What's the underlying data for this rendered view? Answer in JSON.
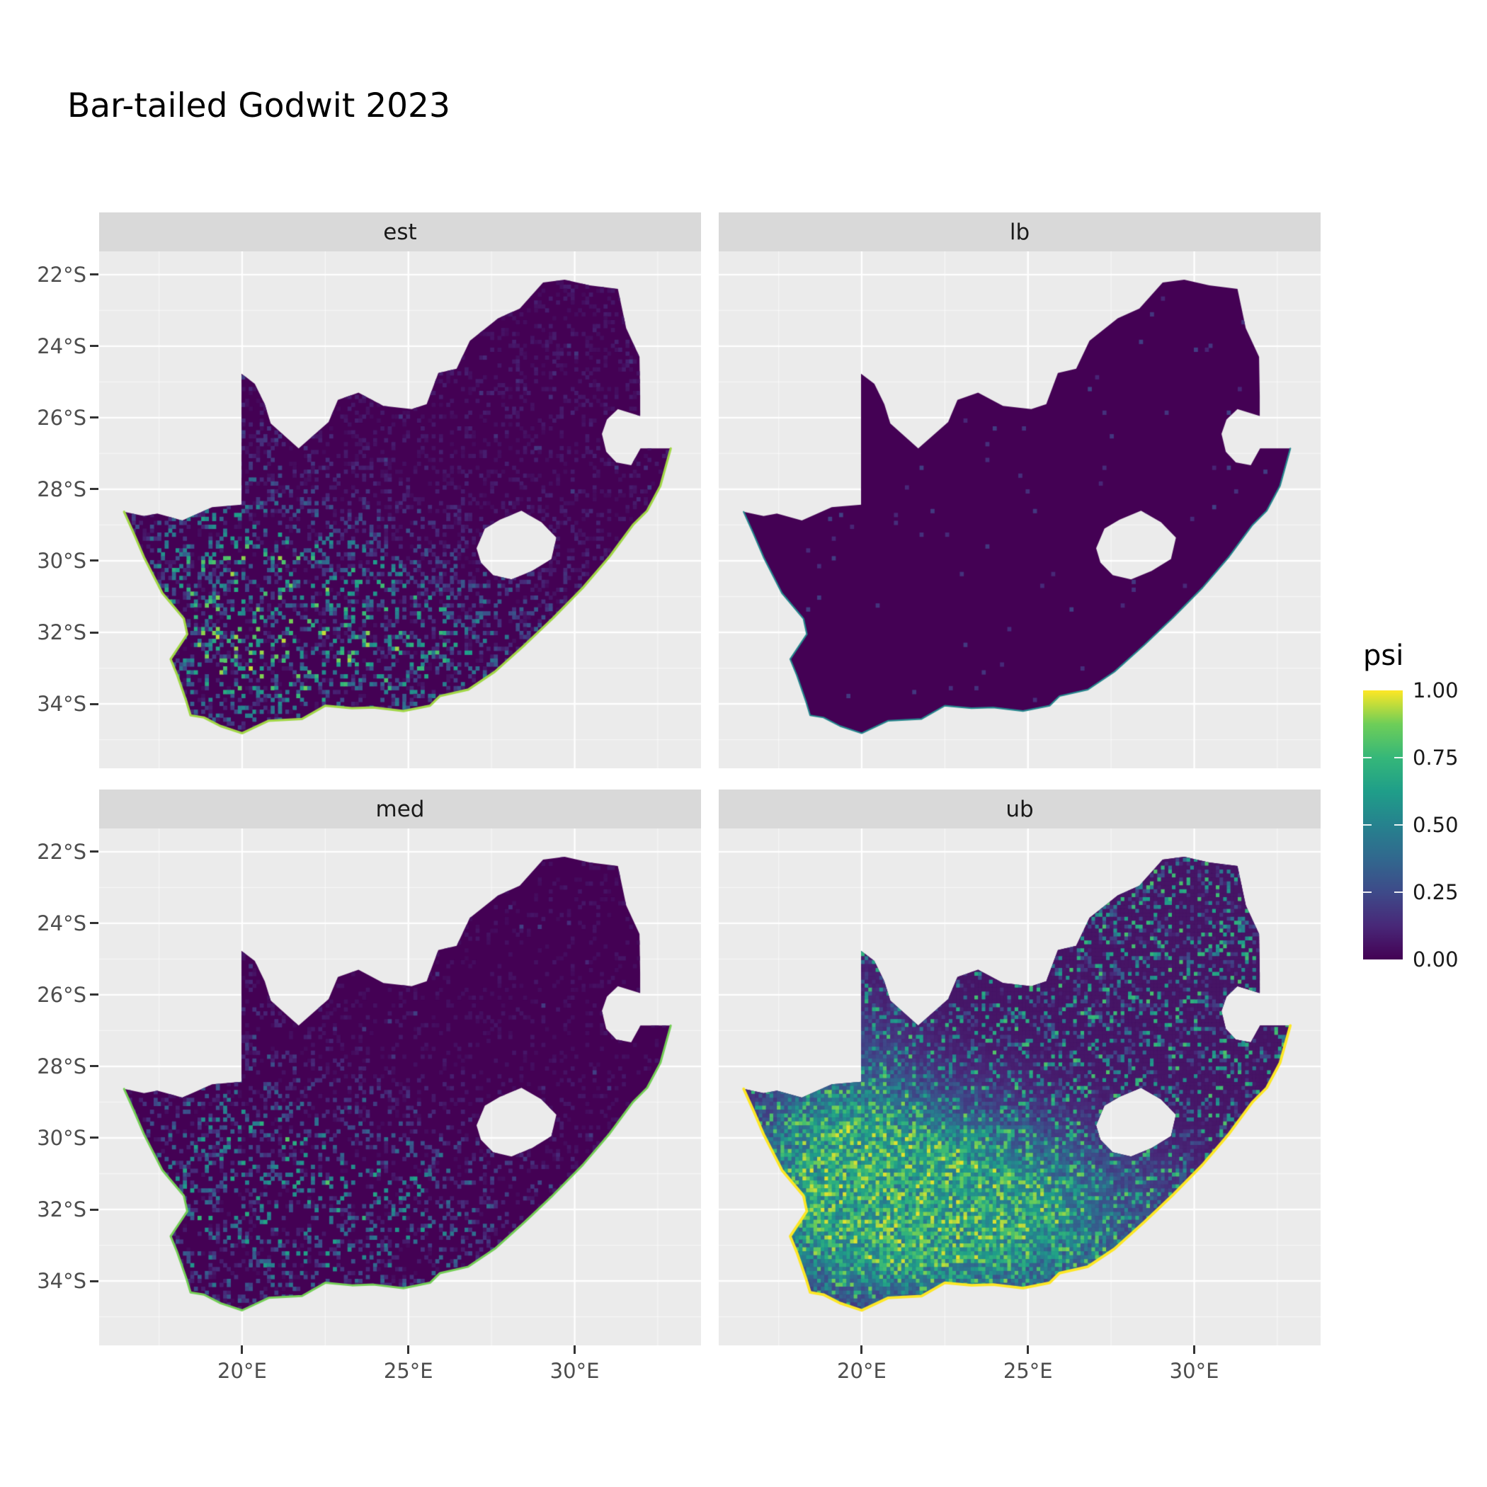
{
  "title": "Bar-tailed Godwit 2023",
  "legend": {
    "title": "psi",
    "tick_labels": [
      "1.00",
      "0.75",
      "0.50",
      "0.25",
      "0.00"
    ],
    "tick_values": [
      1.0,
      0.75,
      0.5,
      0.25,
      0.0
    ]
  },
  "axes": {
    "x_ticks": [
      {
        "label": "20°E",
        "value": 20
      },
      {
        "label": "25°E",
        "value": 25
      },
      {
        "label": "30°E",
        "value": 30
      }
    ],
    "y_ticks": [
      {
        "label": "22°S",
        "value": -22
      },
      {
        "label": "24°S",
        "value": -24
      },
      {
        "label": "26°S",
        "value": -26
      },
      {
        "label": "28°S",
        "value": -28
      },
      {
        "label": "30°S",
        "value": -30
      },
      {
        "label": "32°S",
        "value": -32
      },
      {
        "label": "34°S",
        "value": -34
      }
    ]
  },
  "chart_data": {
    "type": "heatmap",
    "title": "Bar-tailed Godwit 2023",
    "variable": "psi",
    "region": "South Africa (Lesotho and Eswatini excluded as holes)",
    "legend_position": "right",
    "value_domain": [
      0,
      1
    ],
    "facets": [
      {
        "label": "est",
        "summary": "Mostly psi≈0 (dark purple); scattered 0.2–0.5 speckling across the southwestern half; coastal edge cells near 1 (yellow-green).",
        "pattern": {
          "style": "speckle",
          "threshold": 0.55,
          "power": 2.2,
          "floor": 0.1,
          "sw_weight": 0.85,
          "rare_bright": 0.995,
          "coast_value": 0.92,
          "coast_width": 3.2,
          "seed": 11
        }
      },
      {
        "label": "lb",
        "summary": "Almost uniformly psi≈0; faint elevated values only along the southern and western coastline.",
        "pattern": {
          "style": "flat",
          "speck_p": 0.993,
          "speck_v": 0.22,
          "coast_value": 0.52,
          "coast_width": 2.2,
          "seed": 23
        }
      },
      {
        "label": "med",
        "summary": "Mostly psi≈0 with sparse 0.2–0.4 speckling in the southwest; coastal edge cells near 1.",
        "pattern": {
          "style": "speckle",
          "threshold": 0.62,
          "power": 2.4,
          "floor": 0.07,
          "sw_weight": 0.62,
          "rare_bright": 0.996,
          "coast_value": 0.88,
          "coast_width": 3.0,
          "seed": 37
        }
      },
      {
        "label": "ub",
        "summary": "High psi 0.5–1.0 (green-yellow) over the southwestern interior, moderate 0.25–0.5 teal speckling across the north and east; coastline ≈1 (yellow).",
        "pattern": {
          "style": "dense",
          "base": 0.06,
          "sw_weight": 0.92,
          "north_speckle_p": 0.86,
          "mid_speckle_p": 0.68,
          "coast_value": 1.0,
          "coast_width": 3.8,
          "seed": 51
        }
      }
    ],
    "color_scale": {
      "name": "viridis",
      "domain": [
        0,
        1
      ],
      "stops": [
        [
          0.0,
          "#440154"
        ],
        [
          0.125,
          "#482878"
        ],
        [
          0.25,
          "#3e4a89"
        ],
        [
          0.375,
          "#31688e"
        ],
        [
          0.5,
          "#26828e"
        ],
        [
          0.625,
          "#1f9e89"
        ],
        [
          0.75,
          "#35b779"
        ],
        [
          0.875,
          "#6ece58"
        ],
        [
          1.0,
          "#fde725"
        ]
      ]
    },
    "lon_range": [
      15.7,
      33.8
    ],
    "lat_range": [
      -35.8,
      -21.35
    ],
    "grid": {
      "major_lon": [
        20,
        25,
        30
      ],
      "major_lat": [
        -22,
        -24,
        -26,
        -28,
        -30,
        -32,
        -34
      ],
      "minor_lon": [
        17.5,
        22.5,
        27.5,
        32.5
      ],
      "minor_lat": [
        -23,
        -25,
        -27,
        -29,
        -31,
        -33,
        -35
      ]
    },
    "panel_bg": "#ebebeb",
    "strip_bg": "#d9d9d9",
    "gridline_color": "#ffffff",
    "map_outline": [
      [
        16.45,
        -28.63
      ],
      [
        17.05,
        -28.75
      ],
      [
        17.45,
        -28.68
      ],
      [
        18.2,
        -28.87
      ],
      [
        19.1,
        -28.5
      ],
      [
        19.98,
        -28.43
      ],
      [
        19.98,
        -24.77
      ],
      [
        20.38,
        -25.05
      ],
      [
        20.68,
        -25.62
      ],
      [
        20.86,
        -26.16
      ],
      [
        21.7,
        -26.86
      ],
      [
        22.6,
        -26.12
      ],
      [
        22.88,
        -25.5
      ],
      [
        23.5,
        -25.3
      ],
      [
        24.25,
        -25.67
      ],
      [
        25.1,
        -25.76
      ],
      [
        25.55,
        -25.62
      ],
      [
        25.9,
        -24.75
      ],
      [
        26.45,
        -24.63
      ],
      [
        26.85,
        -23.85
      ],
      [
        27.7,
        -23.22
      ],
      [
        28.35,
        -22.95
      ],
      [
        29.05,
        -22.22
      ],
      [
        29.7,
        -22.14
      ],
      [
        30.45,
        -22.3
      ],
      [
        31.3,
        -22.4
      ],
      [
        31.55,
        -23.5
      ],
      [
        31.95,
        -24.3
      ],
      [
        31.97,
        -25.4
      ],
      [
        31.97,
        -25.95
      ],
      [
        31.3,
        -25.76
      ],
      [
        30.97,
        -26.05
      ],
      [
        30.82,
        -26.45
      ],
      [
        30.95,
        -26.95
      ],
      [
        31.25,
        -27.25
      ],
      [
        31.7,
        -27.33
      ],
      [
        31.98,
        -26.86
      ],
      [
        32.55,
        -26.86
      ],
      [
        32.89,
        -26.86
      ],
      [
        32.58,
        -27.9
      ],
      [
        32.18,
        -28.6
      ],
      [
        31.75,
        -29.0
      ],
      [
        31.05,
        -29.88
      ],
      [
        30.25,
        -30.75
      ],
      [
        29.35,
        -31.6
      ],
      [
        28.5,
        -32.35
      ],
      [
        27.6,
        -33.1
      ],
      [
        26.8,
        -33.6
      ],
      [
        25.95,
        -33.78
      ],
      [
        25.65,
        -34.05
      ],
      [
        24.85,
        -34.2
      ],
      [
        23.95,
        -34.1
      ],
      [
        23.3,
        -34.12
      ],
      [
        22.5,
        -34.05
      ],
      [
        21.8,
        -34.42
      ],
      [
        20.8,
        -34.47
      ],
      [
        20.0,
        -34.82
      ],
      [
        19.35,
        -34.62
      ],
      [
        18.85,
        -34.38
      ],
      [
        18.45,
        -34.32
      ],
      [
        18.32,
        -33.92
      ],
      [
        18.05,
        -33.2
      ],
      [
        17.85,
        -32.75
      ],
      [
        18.35,
        -32.05
      ],
      [
        18.25,
        -31.62
      ],
      [
        17.6,
        -30.9
      ],
      [
        17.05,
        -29.9
      ],
      [
        16.75,
        -29.25
      ]
    ],
    "lesotho_hole": [
      [
        27.05,
        -29.65
      ],
      [
        27.3,
        -29.1
      ],
      [
        27.75,
        -28.85
      ],
      [
        28.4,
        -28.6
      ],
      [
        29.0,
        -28.92
      ],
      [
        29.45,
        -29.35
      ],
      [
        29.3,
        -29.95
      ],
      [
        28.72,
        -30.28
      ],
      [
        28.1,
        -30.52
      ],
      [
        27.55,
        -30.4
      ],
      [
        27.18,
        -30.05
      ]
    ],
    "coast_start_index": 38
  }
}
